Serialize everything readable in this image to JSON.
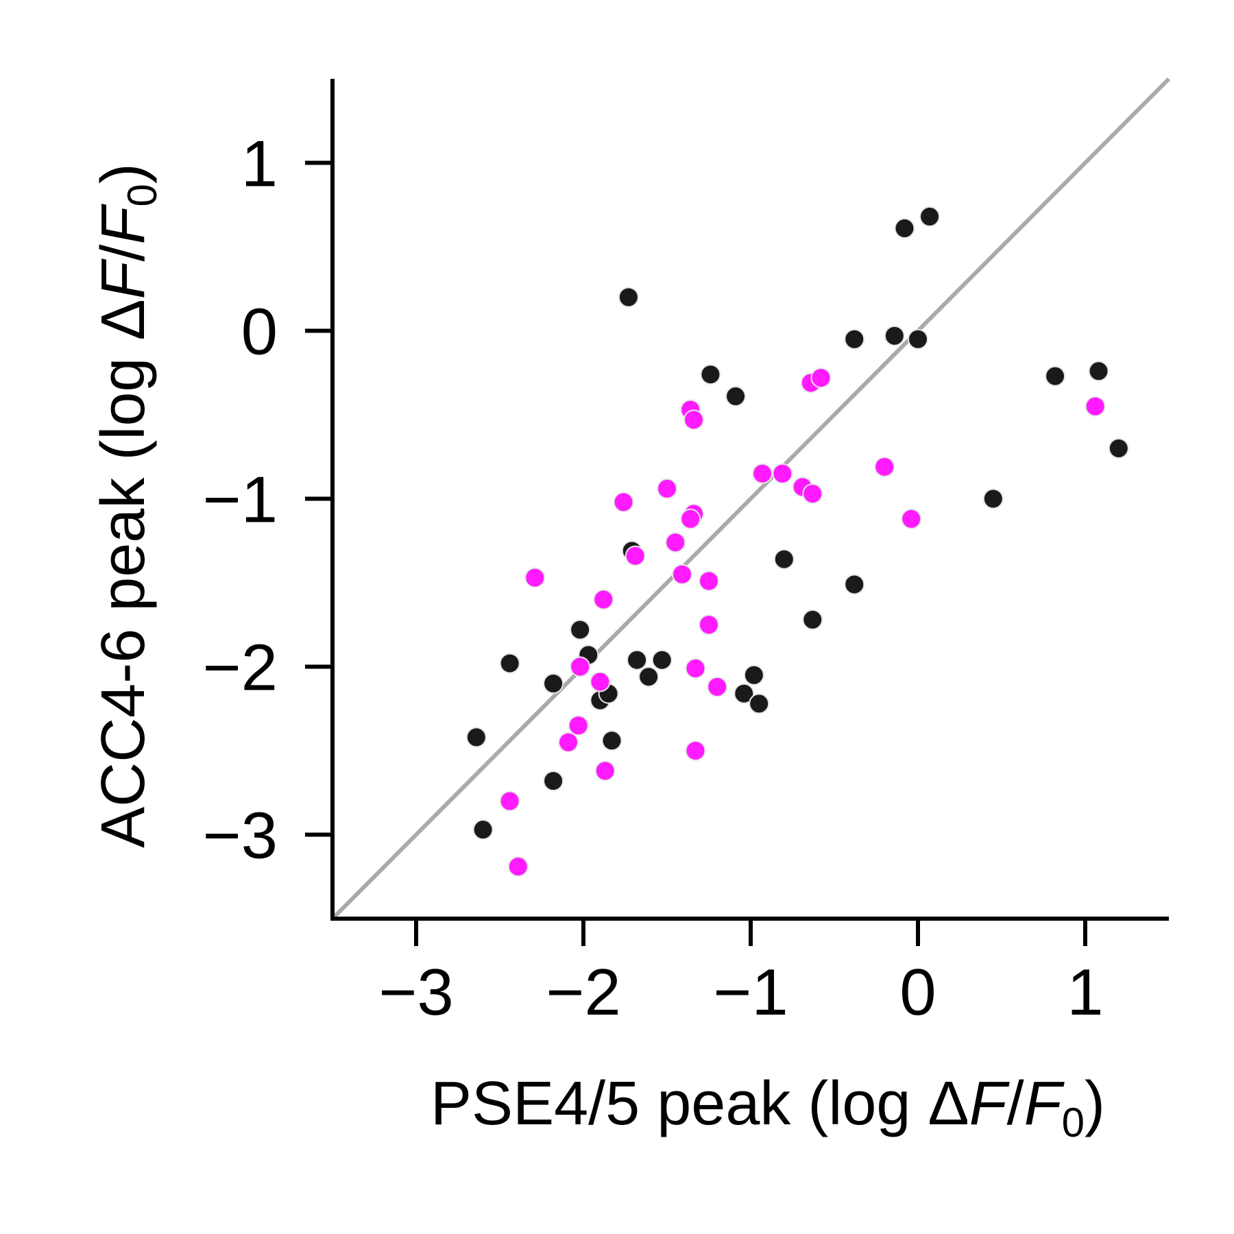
{
  "chart_data": {
    "type": "scatter",
    "title": "",
    "xlabel": {
      "prefix": "PSE4/5 peak (log Δ",
      "italic_1": "F",
      "middle": "/",
      "italic_2": "F",
      "subscript": "0",
      "suffix": ")"
    },
    "ylabel": {
      "prefix": "ACC4-6 peak (log Δ",
      "italic_1": "F",
      "middle": "/",
      "italic_2": "F",
      "subscript": "0",
      "suffix": ")"
    },
    "xlim": [
      -3.5,
      1.5
    ],
    "ylim": [
      -3.5,
      1.5
    ],
    "xticks": [
      -3,
      -2,
      -1,
      0,
      1
    ],
    "yticks": [
      -3,
      -2,
      -1,
      0,
      1
    ],
    "xtick_labels": [
      "−3",
      "−2",
      "−1",
      "0",
      "1"
    ],
    "ytick_labels": [
      "−3",
      "−2",
      "−1",
      "0",
      "1"
    ],
    "grid": false,
    "reference_line": {
      "type": "identity",
      "color": "#aaaaaa"
    },
    "series": [
      {
        "color": "#1a1a1a",
        "points": [
          [
            -1.73,
            0.2
          ],
          [
            -0.08,
            0.61
          ],
          [
            0.07,
            0.68
          ],
          [
            -0.38,
            -0.05
          ],
          [
            -0.14,
            -0.03
          ],
          [
            0.0,
            -0.05
          ],
          [
            -1.24,
            -0.26
          ],
          [
            -1.09,
            -0.39
          ],
          [
            0.82,
            -0.27
          ],
          [
            1.08,
            -0.24
          ],
          [
            1.2,
            -0.7
          ],
          [
            0.45,
            -1.0
          ],
          [
            -1.71,
            -1.31
          ],
          [
            -0.8,
            -1.36
          ],
          [
            -0.38,
            -1.51
          ],
          [
            -0.63,
            -1.72
          ],
          [
            -2.44,
            -1.98
          ],
          [
            -2.02,
            -1.78
          ],
          [
            -1.97,
            -1.93
          ],
          [
            -1.68,
            -1.96
          ],
          [
            -1.53,
            -1.96
          ],
          [
            -1.61,
            -2.06
          ],
          [
            -2.18,
            -2.1
          ],
          [
            -1.9,
            -2.2
          ],
          [
            -1.85,
            -2.16
          ],
          [
            -0.98,
            -2.05
          ],
          [
            -1.04,
            -2.16
          ],
          [
            -0.95,
            -2.22
          ],
          [
            -2.64,
            -2.42
          ],
          [
            -1.83,
            -2.44
          ],
          [
            -2.18,
            -2.68
          ],
          [
            -2.6,
            -2.97
          ]
        ]
      },
      {
        "color": "#ff1aff",
        "points": [
          [
            -0.64,
            -0.31
          ],
          [
            -0.58,
            -0.28
          ],
          [
            -1.36,
            -0.47
          ],
          [
            -1.34,
            -0.53
          ],
          [
            1.06,
            -0.45
          ],
          [
            -0.93,
            -0.85
          ],
          [
            -0.81,
            -0.85
          ],
          [
            -0.69,
            -0.93
          ],
          [
            -0.63,
            -0.97
          ],
          [
            -0.2,
            -0.81
          ],
          [
            -0.04,
            -1.12
          ],
          [
            -1.5,
            -0.94
          ],
          [
            -1.76,
            -1.02
          ],
          [
            -1.34,
            -1.09
          ],
          [
            -1.36,
            -1.12
          ],
          [
            -1.45,
            -1.26
          ],
          [
            -1.69,
            -1.34
          ],
          [
            -1.41,
            -1.45
          ],
          [
            -1.25,
            -1.49
          ],
          [
            -2.29,
            -1.47
          ],
          [
            -1.88,
            -1.6
          ],
          [
            -1.25,
            -1.75
          ],
          [
            -2.02,
            -2.0
          ],
          [
            -1.9,
            -2.09
          ],
          [
            -1.33,
            -2.01
          ],
          [
            -1.2,
            -2.12
          ],
          [
            -2.03,
            -2.35
          ],
          [
            -2.09,
            -2.45
          ],
          [
            -1.87,
            -2.62
          ],
          [
            -1.33,
            -2.5
          ],
          [
            -2.44,
            -2.8
          ],
          [
            -2.39,
            -3.19
          ]
        ]
      }
    ]
  }
}
